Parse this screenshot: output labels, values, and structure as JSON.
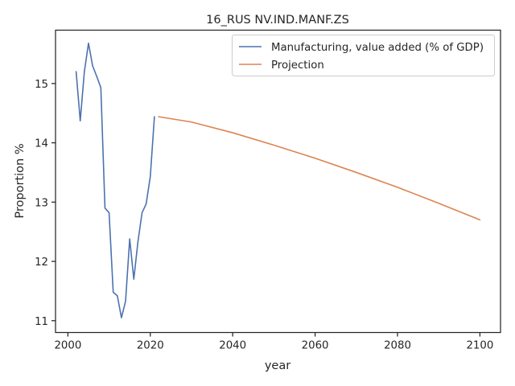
{
  "chart_data": {
    "type": "line",
    "title": "16_RUS NV.IND.MANF.ZS",
    "xlabel": "year",
    "ylabel": "Proportion %",
    "xlim": [
      1997,
      2105
    ],
    "ylim": [
      10.8,
      15.9
    ],
    "xticks": [
      2000,
      2020,
      2040,
      2060,
      2080,
      2100
    ],
    "yticks": [
      11,
      12,
      13,
      14,
      15
    ],
    "grid": false,
    "legend_position": "top-right",
    "series": [
      {
        "name": "Manufacturing, value added (% of GDP)",
        "color": "#4c72b0",
        "x": [
          2002,
          2003,
          2004,
          2005,
          2006,
          2007,
          2008,
          2009,
          2010,
          2011,
          2012,
          2013,
          2014,
          2015,
          2016,
          2017,
          2018,
          2019,
          2020,
          2021
        ],
        "y": [
          15.2,
          14.37,
          15.2,
          15.68,
          15.3,
          15.12,
          14.93,
          12.9,
          12.82,
          11.48,
          11.42,
          11.05,
          11.33,
          12.38,
          11.7,
          12.33,
          12.82,
          12.97,
          13.43,
          14.44
        ]
      },
      {
        "name": "Projection",
        "color": "#dd8452",
        "x": [
          2022,
          2030,
          2040,
          2050,
          2060,
          2070,
          2080,
          2090,
          2100
        ],
        "y": [
          14.44,
          14.35,
          14.17,
          13.96,
          13.74,
          13.5,
          13.25,
          12.98,
          12.7
        ]
      }
    ]
  }
}
